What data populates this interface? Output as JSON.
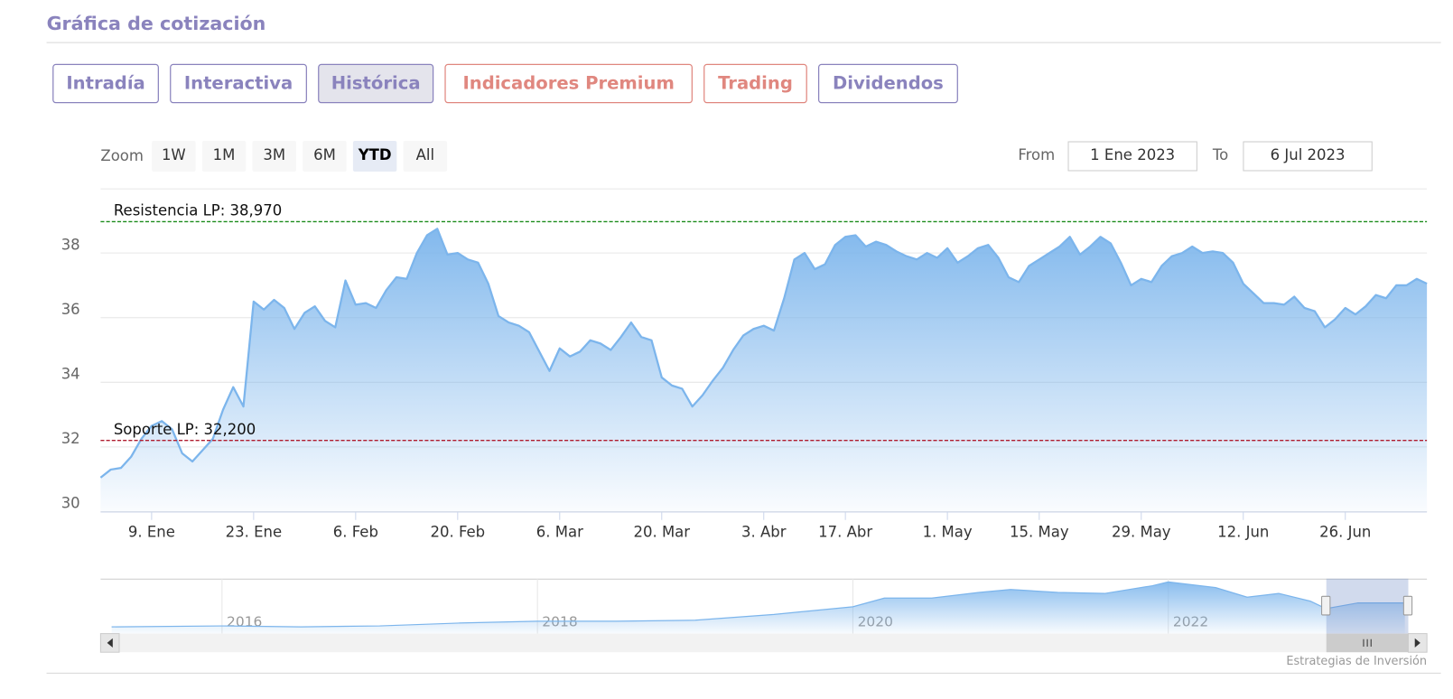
{
  "header": {
    "title": "Gráfica de cotización"
  },
  "tabs": [
    "Intradía",
    "Interactiva",
    "Histórica",
    "Indicadores Premium",
    "Trading",
    "Dividendos"
  ],
  "zoom": {
    "label": "Zoom",
    "buttons": [
      "1W",
      "1M",
      "3M",
      "6M",
      "YTD",
      "All"
    ]
  },
  "range": {
    "from_label": "From",
    "from": "1 Ene 2023",
    "to_label": "To",
    "to": "6 Jul 2023"
  },
  "credits": "Estrategias de Inversión",
  "chart_data": [
    {
      "type": "area",
      "color": "#7cb5ec",
      "grid": true,
      "categories": [
        null,
        null,
        null,
        null,
        null,
        "9. Ene",
        null,
        null,
        null,
        null,
        null,
        null,
        null,
        null,
        null,
        "23. Ene",
        null,
        null,
        null,
        null,
        null,
        null,
        null,
        null,
        null,
        "6. Feb",
        null,
        null,
        null,
        null,
        null,
        null,
        null,
        null,
        null,
        "20. Feb",
        null,
        null,
        null,
        null,
        null,
        null,
        null,
        null,
        null,
        "6. Mar",
        null,
        null,
        null,
        null,
        null,
        null,
        null,
        null,
        null,
        "20. Mar",
        null,
        null,
        null,
        null,
        null,
        null,
        null,
        null,
        null,
        "3. Abr",
        null,
        null,
        null,
        null,
        null,
        null,
        null,
        "17. Abr",
        null,
        null,
        null,
        null,
        null,
        null,
        null,
        null,
        null,
        "1. May",
        null,
        null,
        null,
        null,
        null,
        null,
        null,
        null,
        "15. May",
        null,
        null,
        null,
        null,
        null,
        null,
        null,
        null,
        null,
        "29. May",
        null,
        null,
        null,
        null,
        null,
        null,
        null,
        null,
        null,
        "12. Jun",
        null,
        null,
        null,
        null,
        null,
        null,
        null,
        null,
        null,
        "26. Jun",
        null,
        null,
        null,
        null,
        null,
        null,
        null,
        null
      ],
      "values": [
        31.05,
        31.3,
        31.35,
        31.7,
        32.25,
        32.65,
        32.8,
        32.55,
        31.8,
        31.55,
        31.9,
        32.25,
        33.15,
        33.85,
        33.25,
        36.5,
        36.25,
        36.55,
        36.3,
        35.65,
        36.15,
        36.35,
        35.9,
        35.7,
        37.15,
        36.4,
        36.45,
        36.3,
        36.85,
        37.25,
        37.2,
        38.0,
        38.55,
        38.75,
        37.95,
        38.0,
        37.8,
        37.7,
        37.05,
        36.05,
        35.85,
        35.75,
        35.55,
        34.95,
        34.35,
        35.05,
        34.8,
        34.95,
        35.3,
        35.2,
        35.0,
        35.4,
        35.85,
        35.4,
        35.3,
        34.15,
        33.9,
        33.8,
        33.25,
        33.6,
        34.05,
        34.45,
        35.0,
        35.45,
        35.65,
        35.75,
        35.6,
        36.6,
        37.8,
        38.0,
        37.5,
        37.65,
        38.25,
        38.5,
        38.55,
        38.2,
        38.35,
        38.25,
        38.05,
        37.9,
        37.8,
        38.0,
        37.85,
        38.15,
        37.7,
        37.9,
        38.15,
        38.25,
        37.85,
        37.25,
        37.1,
        37.6,
        37.8,
        38.0,
        38.2,
        38.5,
        37.95,
        38.2,
        38.5,
        38.3,
        37.7,
        37.0,
        37.2,
        37.1,
        37.6,
        37.9,
        38.0,
        38.2,
        38.0,
        38.05,
        38.0,
        37.7,
        37.05,
        36.75,
        36.45,
        36.45,
        36.4,
        36.65,
        36.3,
        36.2,
        35.7,
        35.95,
        36.3,
        36.1,
        36.35,
        36.7,
        36.6,
        37.0,
        37.0,
        37.2,
        37.05
      ],
      "ylim": [
        30,
        40
      ],
      "yticks": [
        30,
        32,
        34,
        36,
        38
      ],
      "plot_lines": [
        {
          "label": "Resistencia LP: 38,970",
          "value": 38.97,
          "color": "#1a8a1a"
        },
        {
          "label": "Soporte LP: 32,200",
          "value": 32.2,
          "color": "#b01c2e"
        }
      ]
    },
    {
      "type": "area",
      "color": "#7cb5ec",
      "x": [
        2015.3,
        2016.0,
        2016.5,
        2017.0,
        2017.5,
        2018.0,
        2018.5,
        2019.0,
        2019.5,
        2020.0,
        2020.2,
        2020.5,
        2020.8,
        2021.0,
        2021.3,
        2021.6,
        2021.9,
        2022.0,
        2022.3,
        2022.5,
        2022.7,
        2022.9,
        2023.0,
        2023.2,
        2023.5
      ],
      "values": [
        21.3,
        21.9,
        21.3,
        21.9,
        23.7,
        24.9,
        24.9,
        25.5,
        29.2,
        34.1,
        39.6,
        39.6,
        43.2,
        45.1,
        43.2,
        42.6,
        47.5,
        49.9,
        46.3,
        40.2,
        42.6,
        37.7,
        32.9,
        36.5,
        36.5
      ],
      "xlim": [
        2015.23,
        2023.64
      ],
      "xticks": [
        2016,
        2018,
        2020,
        2022
      ],
      "ylim": [
        17,
        52
      ]
    }
  ]
}
